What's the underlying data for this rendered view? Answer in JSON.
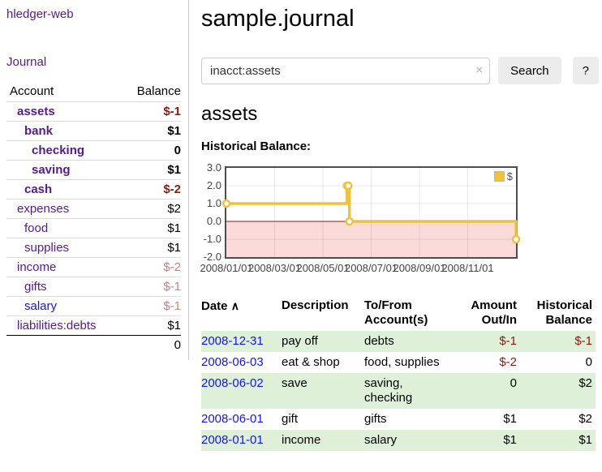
{
  "app": {
    "brand": "hledger-web"
  },
  "nav": {
    "journal": "Journal"
  },
  "sidebar": {
    "columns": {
      "account": "Account",
      "balance": "Balance"
    },
    "accounts": [
      {
        "name": "assets",
        "balance": "$-1"
      },
      {
        "name": "bank",
        "balance": "$1"
      },
      {
        "name": "checking",
        "balance": "0"
      },
      {
        "name": "saving",
        "balance": "$1"
      },
      {
        "name": "cash",
        "balance": "$-2"
      },
      {
        "name": "expenses",
        "balance": "$2"
      },
      {
        "name": "food",
        "balance": "$1"
      },
      {
        "name": "supplies",
        "balance": "$1"
      },
      {
        "name": "income",
        "balance": "$-2"
      },
      {
        "name": "gifts",
        "balance": "$-1"
      },
      {
        "name": "salary",
        "balance": "$-1"
      },
      {
        "name": "liabilities:debts",
        "balance": "$1"
      }
    ],
    "total": "0"
  },
  "header": {
    "title": "sample.journal"
  },
  "search": {
    "value": "inacct:assets",
    "clear_icon": "×",
    "search_button": "Search",
    "help_button": "?"
  },
  "account_view": {
    "heading": "assets",
    "section_label": "Historical Balance:"
  },
  "chart_data": {
    "type": "line",
    "step": true,
    "series": [
      {
        "name": "$",
        "color": "#edc240",
        "points": [
          [
            0,
            1
          ],
          [
            5,
            2
          ],
          [
            5.05,
            2
          ],
          [
            5.1,
            0
          ],
          [
            12,
            -1
          ]
        ],
        "dates": [
          "2008-01-01",
          "2008-06-01",
          "2008-06-02",
          "2008-06-03",
          "2008-12-31"
        ]
      }
    ],
    "xlim": [
      0,
      12
    ],
    "ylim": [
      -2,
      3
    ],
    "yticks": [
      {
        "v": 3,
        "label": "3.0"
      },
      {
        "v": 2,
        "label": "2.0"
      },
      {
        "v": 1,
        "label": "1.0"
      },
      {
        "v": 0,
        "label": "0.0"
      },
      {
        "v": -1,
        "label": "-1.0"
      },
      {
        "v": -2,
        "label": "-2.0"
      }
    ],
    "xticks": [
      {
        "v": 0,
        "label": "2008/01/01"
      },
      {
        "v": 2,
        "label": "2008/03/01"
      },
      {
        "v": 4,
        "label": "2008/05/01"
      },
      {
        "v": 6,
        "label": "2008/07/01"
      },
      {
        "v": 8,
        "label": "2008/09/01"
      },
      {
        "v": 10,
        "label": "2008/11/01"
      }
    ],
    "xgrid": [
      2,
      4,
      6,
      8,
      10
    ],
    "grid_color": "rgba(0,0,0,0.09)",
    "negative_fill": "#fbdada",
    "zero_line_color": "#8b1a10",
    "legend_position": "top-right"
  },
  "register": {
    "columns": {
      "date": "Date",
      "sort_icon": "∧",
      "description": "Description",
      "accounts": "To/From\nAccount(s)",
      "amount": "Amount\nOut/In",
      "balance": "Historical\nBalance"
    },
    "rows": [
      {
        "date": "2008-12-31",
        "description": "pay off",
        "accounts": "debts",
        "amount": "$-1",
        "balance": "$-1"
      },
      {
        "date": "2008-06-03",
        "description": "eat & shop",
        "accounts": "food, supplies",
        "amount": "$-2",
        "balance": "0"
      },
      {
        "date": "2008-06-02",
        "description": "save",
        "accounts": "saving, checking",
        "amount": "0",
        "balance": "$2"
      },
      {
        "date": "2008-06-01",
        "description": "gift",
        "accounts": "gifts",
        "amount": "$1",
        "balance": "$2"
      },
      {
        "date": "2008-01-01",
        "description": "income",
        "accounts": "salary",
        "amount": "$1",
        "balance": "$1"
      }
    ]
  }
}
